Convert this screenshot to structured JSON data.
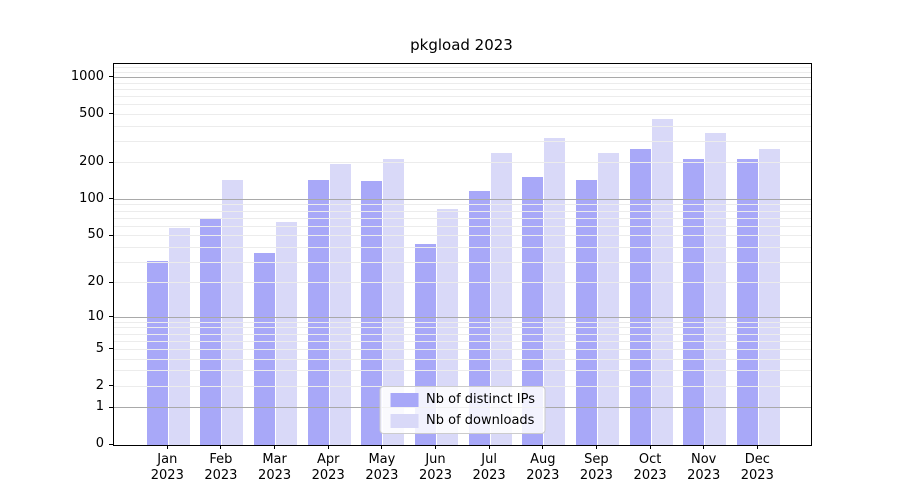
{
  "title": "pkgload 2023",
  "chart_data": {
    "type": "bar",
    "title": "pkgload 2023",
    "yscale": "log1p",
    "ylim": [
      0,
      1300
    ],
    "grid": "on",
    "legend_position": "lower center",
    "y_tick_labels": [
      "1000",
      "500",
      "200",
      "100",
      "50",
      "20",
      "10",
      "5",
      "2",
      "1",
      "0"
    ],
    "y_tick_values": [
      1000,
      500,
      200,
      100,
      50,
      20,
      10,
      5,
      2,
      1,
      0
    ],
    "y_major_grid_values": [
      1,
      10,
      100,
      1000
    ],
    "x_labels": [
      {
        "month": "Jan",
        "year": "2023"
      },
      {
        "month": "Feb",
        "year": "2023"
      },
      {
        "month": "Mar",
        "year": "2023"
      },
      {
        "month": "Apr",
        "year": "2023"
      },
      {
        "month": "May",
        "year": "2023"
      },
      {
        "month": "Jun",
        "year": "2023"
      },
      {
        "month": "Jul",
        "year": "2023"
      },
      {
        "month": "Aug",
        "year": "2023"
      },
      {
        "month": "Sep",
        "year": "2023"
      },
      {
        "month": "Oct",
        "year": "2023"
      },
      {
        "month": "Nov",
        "year": "2023"
      },
      {
        "month": "Dec",
        "year": "2023"
      }
    ],
    "series": [
      {
        "name": "Nb of distinct IPs",
        "color": "#a8a8f8",
        "values": [
          31,
          70,
          36,
          146,
          142,
          43,
          119,
          153,
          147,
          260,
          215,
          217
        ]
      },
      {
        "name": "Nb of downloads",
        "color": "#d9d9f8",
        "values": [
          59,
          145,
          65,
          196,
          217,
          84,
          242,
          324,
          242,
          460,
          353,
          262
        ]
      }
    ],
    "colors": {
      "major_grid": "#a9a9a9",
      "minor_grid": "#ececec",
      "axis": "#000000",
      "background": "#ffffff"
    }
  }
}
